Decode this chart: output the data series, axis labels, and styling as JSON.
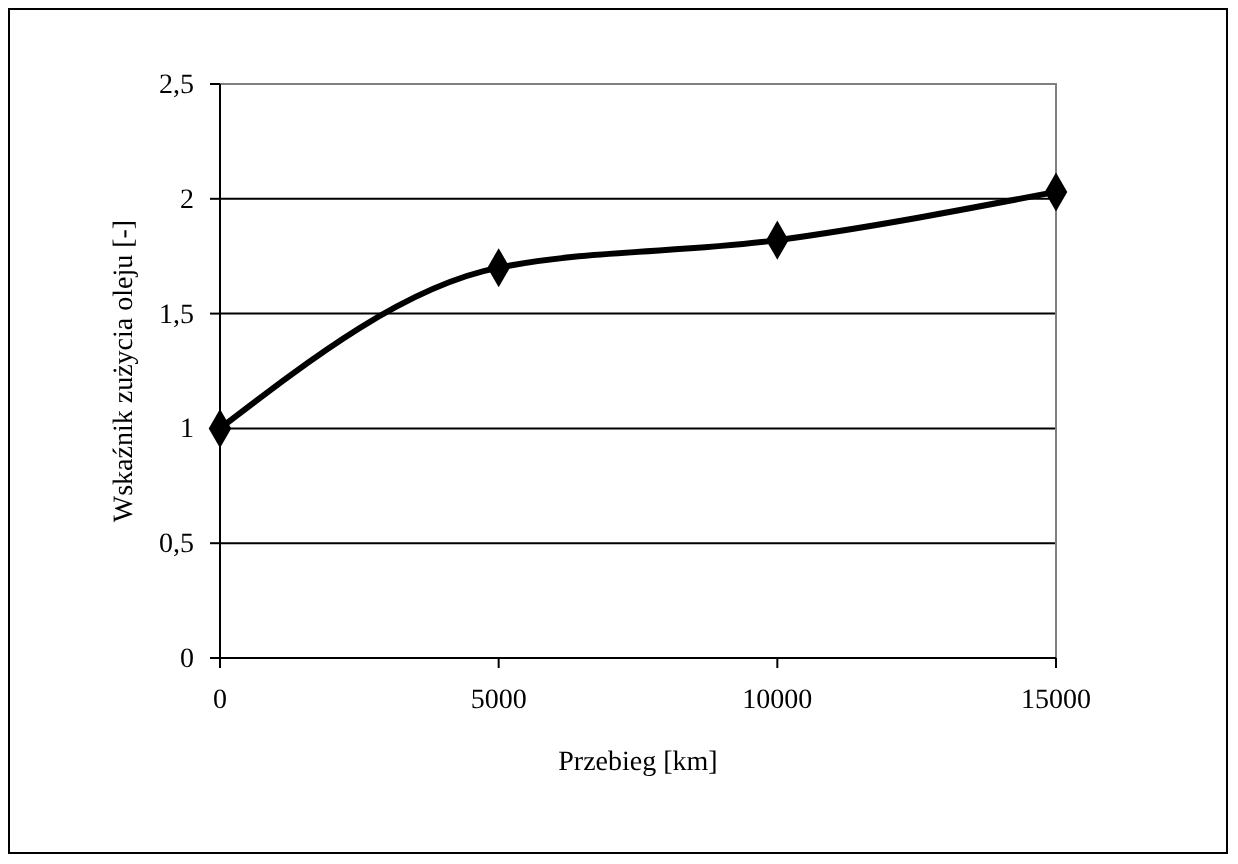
{
  "chart_data": {
    "type": "line",
    "xlabel": "Przebieg [km]",
    "ylabel": "Wskaźnik zużycia oleju [-]",
    "x": [
      0,
      5000,
      10000,
      15000
    ],
    "series": [
      {
        "color": "#000000",
        "values": [
          1,
          1.7,
          1.82,
          2.03
        ]
      }
    ],
    "xlim": [
      0,
      15000
    ],
    "xticks": [
      0,
      5000,
      10000,
      15000
    ],
    "ylim": [
      0,
      2.5
    ],
    "yticks": [
      0,
      {
        "value": 0.5,
        "label": "0,5"
      },
      1,
      {
        "value": 1.5,
        "label": "1,5"
      },
      2,
      {
        "value": 2.5,
        "label": "2,5"
      }
    ],
    "grid": "y",
    "marker": "diamond",
    "line_style": "solid"
  }
}
